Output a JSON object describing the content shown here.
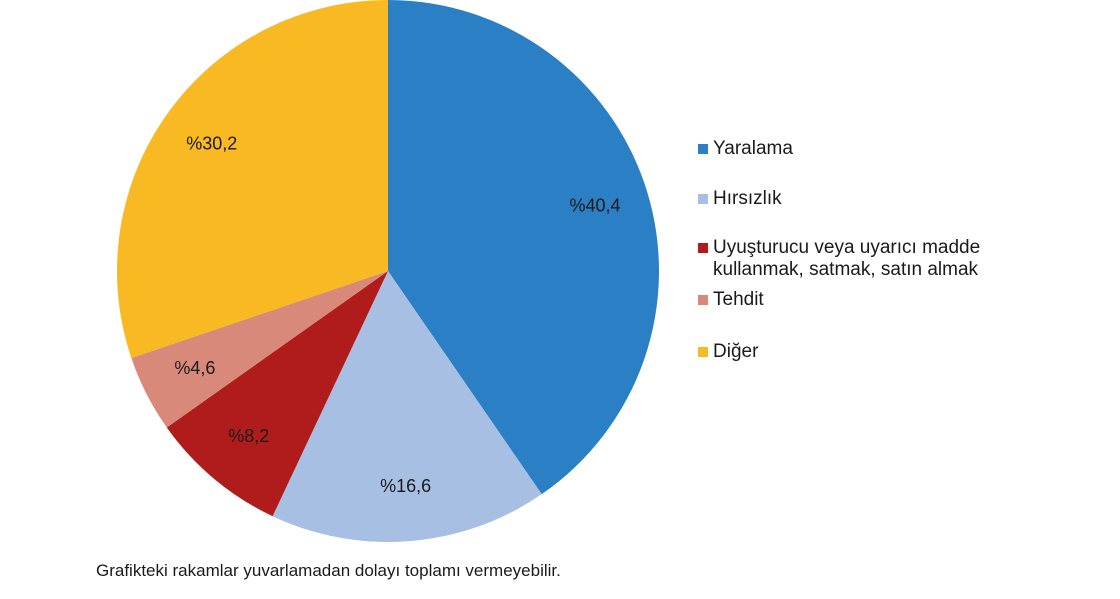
{
  "chart_data": {
    "type": "pie",
    "categories": [
      "Yaralama",
      "Hırsızlık",
      "Uyuşturucu veya uyarıcı madde kullanmak, satmak, satın almak",
      "Tehdit",
      "Diğer"
    ],
    "values": [
      40.4,
      16.6,
      8.2,
      4.6,
      30.2
    ],
    "value_labels": [
      "%40,4",
      "%16,6",
      "%8,2",
      "%4,6",
      "%30,2"
    ],
    "colors": [
      "#2a7fc5",
      "#a6bfe3",
      "#b01c1c",
      "#d9897a",
      "#f9b923"
    ],
    "note": "Grafikteki rakamlar yuvarlamadan dolayı toplamı vermeyebilir."
  }
}
